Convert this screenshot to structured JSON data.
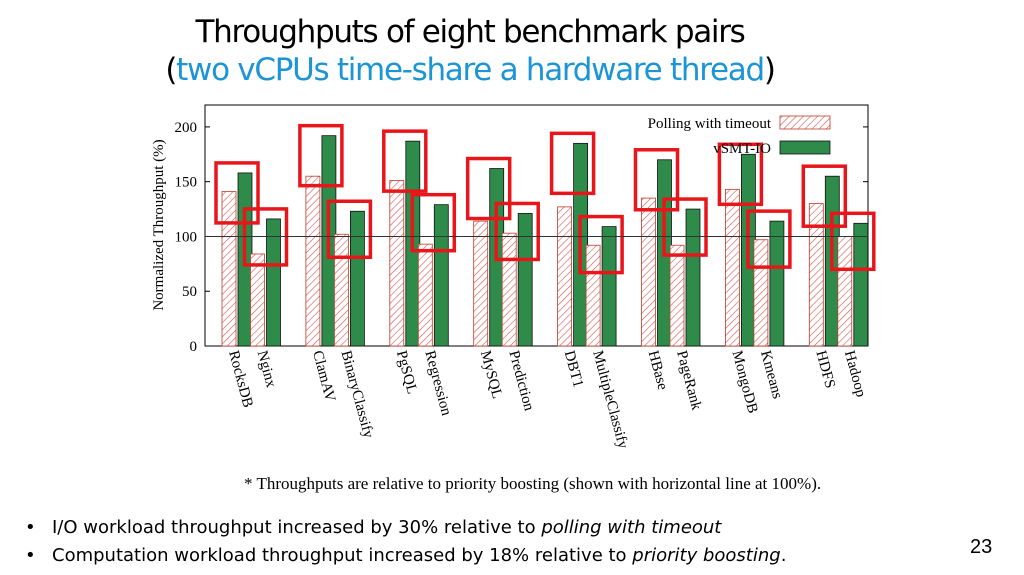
{
  "slide": {
    "title_line1": "Throughputs of eight benchmark pairs",
    "title_open": "(",
    "title_accent": "two vCPUs time-share a hardware thread",
    "title_close": ")",
    "footnote": "* Throughputs are relative to priority boosting (shown with horizontal line at 100%).",
    "bullet1_prefix": "I/O workload throughput increased by 30% relative to ",
    "bullet1_em": "polling with timeout",
    "bullet2_prefix": "Computation workload throughput increased by 18% relative to ",
    "bullet2_em": "priority boosting",
    "bullet2_suffix": ".",
    "page_number": "23",
    "accent_color": "#1b95d6",
    "highlight_color": "#e8161b"
  },
  "chart_data": {
    "type": "bar",
    "ylabel": "Normalized Throughput (%)",
    "ylim": [
      0,
      220
    ],
    "yticks": [
      0,
      50,
      100,
      150,
      200
    ],
    "reference_line": 100,
    "categories": [
      "RocksDB",
      "Nginx",
      "ClamAV",
      "BinaryClassify",
      "PgSQL",
      "Regression",
      "MySQL",
      "Prediction",
      "DBT1",
      "MultipleClassify",
      "HBase",
      "PageRank",
      "MongoDB",
      "Kmeans",
      "HDFS",
      "Hadoop"
    ],
    "series": [
      {
        "name": "Polling with timeout",
        "color": "#f2a8a8",
        "pattern": "hatched",
        "values": [
          141,
          84,
          155,
          102,
          151,
          93,
          114,
          103,
          127,
          92,
          135,
          92,
          143,
          97,
          130,
          100
        ]
      },
      {
        "name": "vSMT-IO",
        "color": "#2e8b4a",
        "pattern": "solid",
        "values": [
          158,
          116,
          192,
          123,
          187,
          129,
          162,
          121,
          185,
          109,
          170,
          125,
          175,
          114,
          155,
          112
        ]
      }
    ],
    "legend_position": "top-right",
    "highlighted_pairs": "each category's bar pair is outlined with a red box"
  }
}
